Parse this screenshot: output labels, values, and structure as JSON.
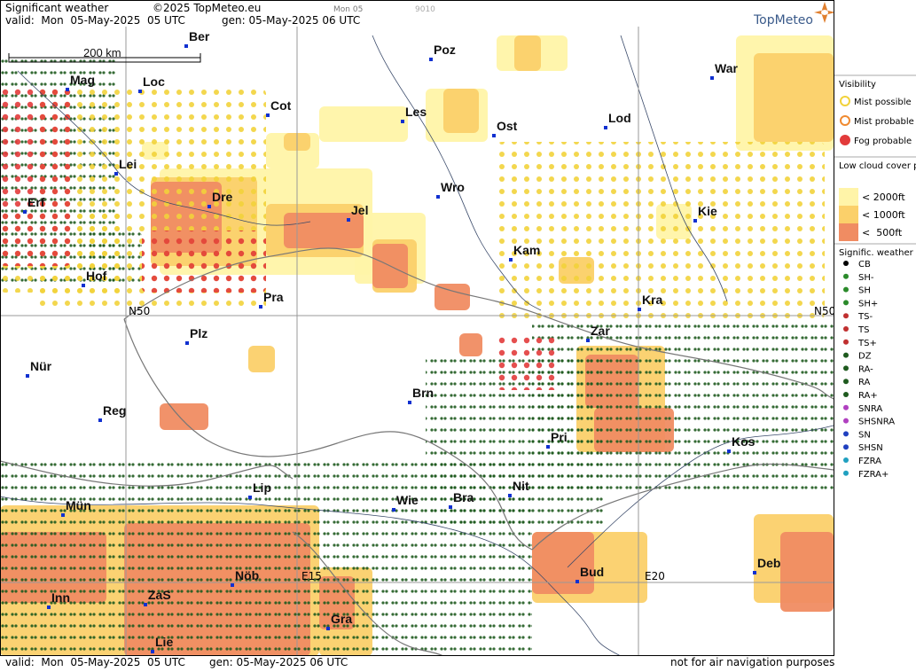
{
  "header": {
    "title": "Significant weather",
    "copyright": "©2025 TopMeteo.eu",
    "run_day": "Mon 05",
    "code": "9010",
    "valid": "valid:  Mon  05-May-2025  05 UTC",
    "gen": "gen: 05-May-2025 06 UTC",
    "logo": "TopMeteo"
  },
  "map": {
    "scale": "200 km",
    "grid_labels": [
      "N50",
      "N50",
      "E15",
      "E20"
    ],
    "cities": [
      "Ber",
      "Poz",
      "War",
      "Mag",
      "Loc",
      "Cot",
      "Les",
      "Lod",
      "Ost",
      "Lei",
      "Dre",
      "Erf",
      "Jel",
      "Wro",
      "Kie",
      "Kam",
      "Hof",
      "Pra",
      "Kra",
      "Zar",
      "Plz",
      "Nür",
      "Brn",
      "Reg",
      "Pri",
      "Kos",
      "Lip",
      "Nit",
      "Wie",
      "Bra",
      "Mün",
      "Deb",
      "Nöb",
      "Bud",
      "Inn",
      "ZaS",
      "Gra",
      "Lie"
    ]
  },
  "legend": {
    "visibility": {
      "title": "Visibility",
      "items": [
        "Mist possible",
        "Mist probable",
        "Fog probable"
      ]
    },
    "low_cloud": {
      "title": "Low cloud cover probable",
      "items": [
        "< 2000ft",
        "< 1000ft",
        "<  500ft"
      ]
    },
    "weather": {
      "title": "Signific. weather",
      "items": [
        "CB",
        "SH-",
        "SH",
        "SH+",
        "TS-",
        "TS",
        "TS+",
        "DZ",
        "RA-",
        "RA",
        "RA+",
        "SNRA",
        "SHSNRA",
        "SN",
        "SHSN",
        "FZRA",
        "FZRA+"
      ]
    }
  },
  "footer": {
    "valid": "valid:  Mon  05-May-2025  05 UTC",
    "gen": "gen: 05-May-2025 06 UTC",
    "note": "not for air navigation purposes"
  }
}
